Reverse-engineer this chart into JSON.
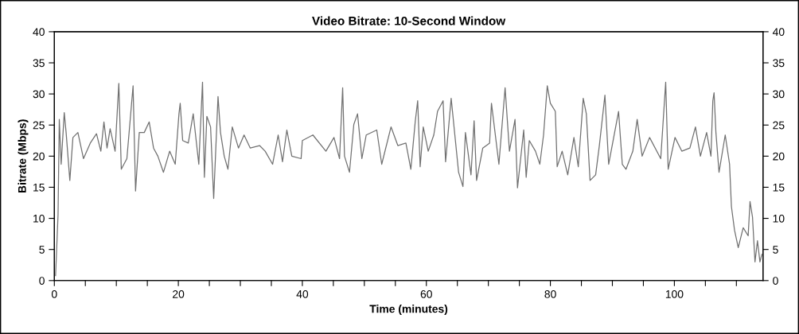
{
  "chart_data": {
    "type": "line",
    "title": "Video Bitrate: 10-Second Window",
    "xlabel": "Time (minutes)",
    "ylabel": "Bitrate (Mbps)",
    "xlim": [
      0,
      114.3
    ],
    "xticks": [
      0,
      {
        "value": 5,
        "label": null
      },
      {
        "value": 10,
        "label": null
      },
      {
        "value": 15,
        "label": null
      },
      20,
      {
        "value": 25,
        "label": null
      },
      {
        "value": 30,
        "label": null
      },
      {
        "value": 35,
        "label": null
      },
      40,
      {
        "value": 45,
        "label": null
      },
      {
        "value": 50,
        "label": null
      },
      {
        "value": 55,
        "label": null
      },
      60,
      {
        "value": 65,
        "label": null
      },
      {
        "value": 70,
        "label": null
      },
      {
        "value": 75,
        "label": null
      },
      80,
      {
        "value": 85,
        "label": null
      },
      {
        "value": 90,
        "label": null
      },
      {
        "value": 95,
        "label": null
      },
      100,
      {
        "value": 105,
        "label": null
      },
      {
        "value": 110,
        "label": null
      }
    ],
    "ylim": [
      0,
      40
    ],
    "yticks": [
      0,
      5,
      10,
      15,
      20,
      25,
      30,
      35,
      40
    ],
    "y2lim": [
      0,
      40
    ],
    "y2ticks": [
      0,
      5,
      10,
      15,
      20,
      25,
      30,
      35,
      40
    ],
    "grid": false,
    "marker": "none",
    "line_style": "solid",
    "series": [
      {
        "color": "#707070",
        "x": [
          0.2,
          0.6,
          0.8,
          1.1,
          1.6,
          1.9,
          2.5,
          3.0,
          3.8,
          4.7,
          5.8,
          6.8,
          7.5,
          8.0,
          8.5,
          9.0,
          9.8,
          10.4,
          10.8,
          11.7,
          12.7,
          13.1,
          13.7,
          14.5,
          15.3,
          16.0,
          16.7,
          17.6,
          18.6,
          19.5,
          20.1,
          20.3,
          20.7,
          21.6,
          22.4,
          23.3,
          23.9,
          24.2,
          24.6,
          25.2,
          25.7,
          26.4,
          26.8,
          27.4,
          28.0,
          28.7,
          29.7,
          30.6,
          31.6,
          33.1,
          34.0,
          35.2,
          36.1,
          36.8,
          37.5,
          38.3,
          39.8,
          40.0,
          41.7,
          43.8,
          45.1,
          46.0,
          46.5,
          46.8,
          47.6,
          48.3,
          48.9,
          49.6,
          50.3,
          52.0,
          52.8,
          54.3,
          55.4,
          56.7,
          57.5,
          58.2,
          58.6,
          59.0,
          59.5,
          60.3,
          61.2,
          61.8,
          62.7,
          63.1,
          64.0,
          65.2,
          65.9,
          66.3,
          67.2,
          67.7,
          68.1,
          69.1,
          70.2,
          70.5,
          71.7,
          72.7,
          73.4,
          74.3,
          74.7,
          75.7,
          76.1,
          76.6,
          77.6,
          78.3,
          78.9,
          79.5,
          80.0,
          80.8,
          81.1,
          81.9,
          82.8,
          83.8,
          84.5,
          85.3,
          85.8,
          86.4,
          87.3,
          87.9,
          88.8,
          89.4,
          91.0,
          91.6,
          92.2,
          93.3,
          94.0,
          94.8,
          96.0,
          97.8,
          98.6,
          99.0,
          100.1,
          101.2,
          102.5,
          103.4,
          104.2,
          105.2,
          105.9,
          106.2,
          106.4,
          106.7,
          107.2,
          108.2,
          108.9,
          109.2,
          109.7,
          110.3,
          111.1,
          111.9,
          112.2,
          112.6,
          113.0,
          113.4,
          113.8,
          114.1
        ],
        "values": [
          0.8,
          10.6,
          25.9,
          18.7,
          27.0,
          23.8,
          16.1,
          23.0,
          23.8,
          19.6,
          22.1,
          23.6,
          20.8,
          25.5,
          21.3,
          24.4,
          20.8,
          31.7,
          17.9,
          19.6,
          31.3,
          14.4,
          23.8,
          23.8,
          25.5,
          21.3,
          20.0,
          17.4,
          20.8,
          18.7,
          26.8,
          28.5,
          22.5,
          22.1,
          26.8,
          18.7,
          31.9,
          16.6,
          26.4,
          24.7,
          13.2,
          29.6,
          23.8,
          20.0,
          17.9,
          24.7,
          21.3,
          23.4,
          21.3,
          21.7,
          20.8,
          18.7,
          23.4,
          19.1,
          24.2,
          20.0,
          19.6,
          22.5,
          23.4,
          20.8,
          23.0,
          19.6,
          31.0,
          20.0,
          17.4,
          25.1,
          26.8,
          19.6,
          23.4,
          24.2,
          18.7,
          24.7,
          21.7,
          22.1,
          17.9,
          25.5,
          28.9,
          18.3,
          24.7,
          20.8,
          23.4,
          27.2,
          28.9,
          19.1,
          29.3,
          17.4,
          15.1,
          23.8,
          17.0,
          25.7,
          16.1,
          21.3,
          22.1,
          28.5,
          18.7,
          31.0,
          20.8,
          25.9,
          14.9,
          24.2,
          16.6,
          22.5,
          20.8,
          18.7,
          23.4,
          31.3,
          28.5,
          27.2,
          18.3,
          20.8,
          17.0,
          23.0,
          18.3,
          29.3,
          26.8,
          16.1,
          17.0,
          21.7,
          29.8,
          18.7,
          27.2,
          18.7,
          17.9,
          20.8,
          25.9,
          20.0,
          23.0,
          19.6,
          31.9,
          17.9,
          23.0,
          20.8,
          21.3,
          24.7,
          20.0,
          23.8,
          20.0,
          28.9,
          30.2,
          23.8,
          17.4,
          23.4,
          18.7,
          11.9,
          8.1,
          5.3,
          8.5,
          7.2,
          12.7,
          10.2,
          3.0,
          6.4,
          3.0,
          4.2
        ]
      }
    ]
  }
}
